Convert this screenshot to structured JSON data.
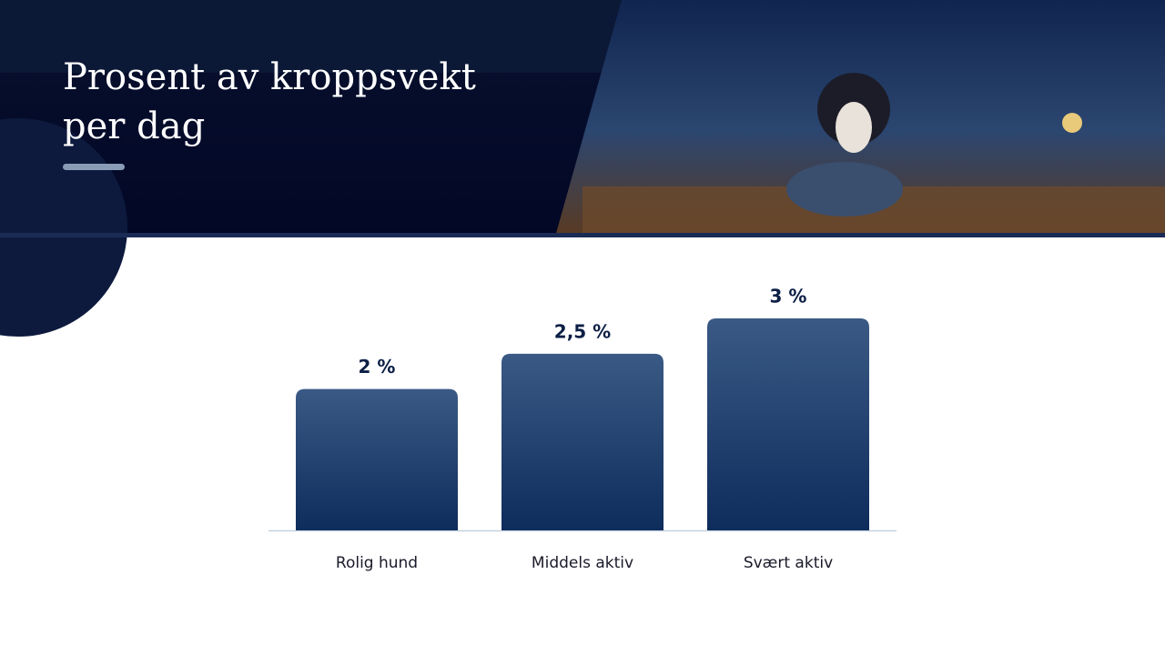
{
  "chart_data": {
    "type": "bar",
    "title": "Prosent av kroppsvekt per dag",
    "categories": [
      "Rolig hund",
      "Middels aktiv",
      "Svært aktiv"
    ],
    "values": [
      2,
      2.5,
      3
    ],
    "value_labels": [
      "2 %",
      "2,5 %",
      "3 %"
    ],
    "color": "#1d3a66"
  }
}
